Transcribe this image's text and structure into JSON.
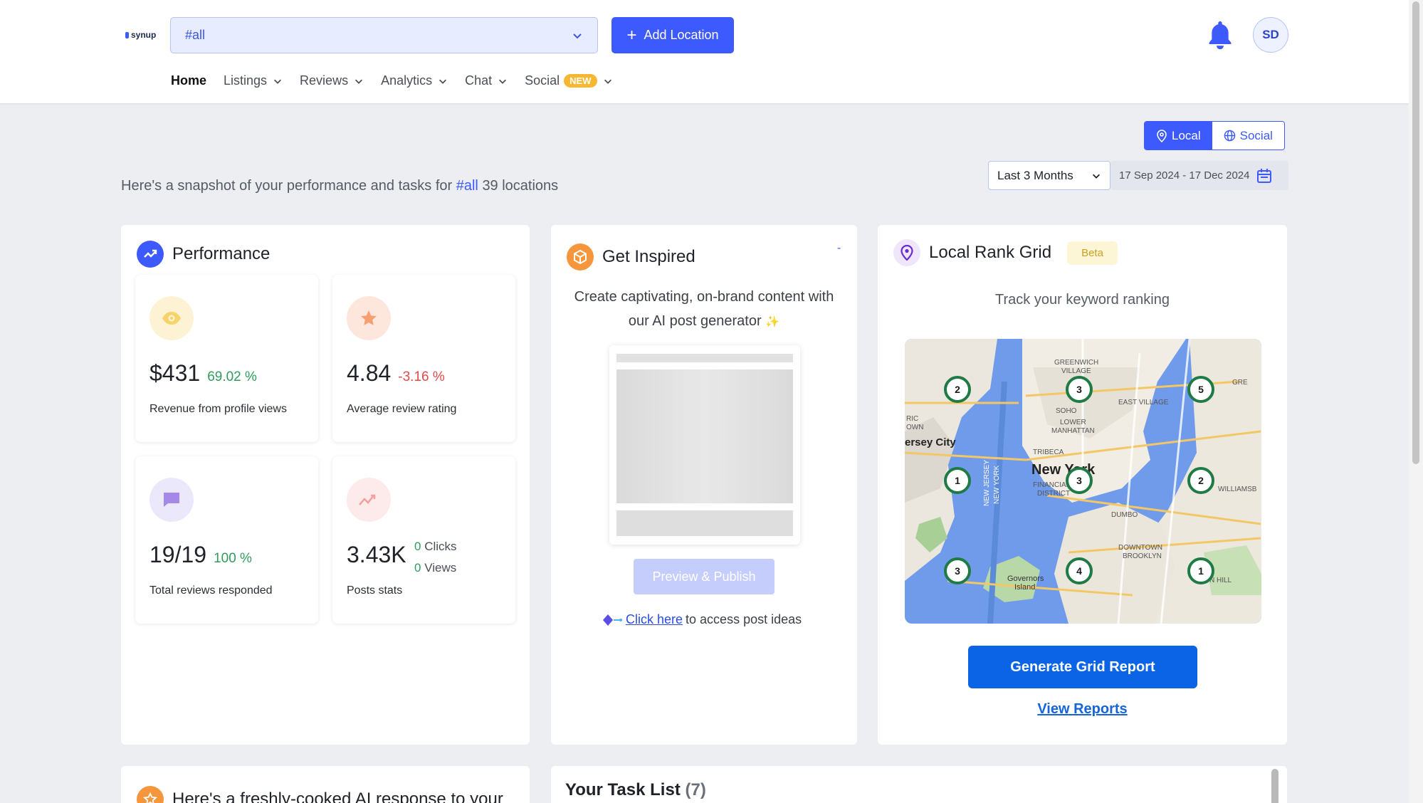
{
  "logo": {
    "text": "synup"
  },
  "location_select": {
    "value": "#all"
  },
  "add_location": {
    "label": "Add Location"
  },
  "avatar": {
    "initials": "SD"
  },
  "nav": [
    {
      "label": "Home",
      "active": true
    },
    {
      "label": "Listings"
    },
    {
      "label": "Reviews"
    },
    {
      "label": "Analytics"
    },
    {
      "label": "Chat"
    },
    {
      "label": "Social",
      "badge": "NEW"
    }
  ],
  "toggle": {
    "local": "Local",
    "social": "Social"
  },
  "date_range": {
    "selected": "Last 3 Months",
    "dates": "17 Sep 2024 - 17 Dec 2024"
  },
  "snapshot": {
    "prefix": "Here's a snapshot of your performance and tasks for",
    "tag": "#all",
    "suffix": "39 locations"
  },
  "performance": {
    "title": "Performance",
    "metrics": [
      {
        "value": "$431",
        "change": "69.02 %",
        "label": "Revenue from profile views",
        "icon": "eye-icon"
      },
      {
        "value": "4.84",
        "change": "-3.16 %",
        "label": "Average review rating",
        "icon": "star-icon"
      },
      {
        "value": "19/19",
        "change": "100 %",
        "label": "Total reviews responded",
        "icon": "chat-icon"
      },
      {
        "value": "3.43K",
        "clicks_count": "0",
        "clicks_label": "Clicks",
        "views_count": "0",
        "views_label": "Views",
        "label": "Posts stats",
        "icon": "trend-icon"
      }
    ]
  },
  "inspire": {
    "title": "Get Inspired",
    "dash": "-",
    "line1": "Create captivating, on-brand content with",
    "line2": "our AI post generator",
    "sparkle": "✨",
    "preview_label": "Preview & Publish",
    "click_here": "Click here",
    "click_suffix": " to access post ideas"
  },
  "rank_grid": {
    "title": "Local Rank Grid",
    "badge": "Beta",
    "subtitle": "Track your keyword ranking",
    "map_labels": {
      "greenwich": "GREENWICH",
      "village": "VILLAGE",
      "east_village": "EAST VILLAGE",
      "soho": "SOHO",
      "lower": "LOWER",
      "manhattan": "MANHATTAN",
      "jersey_city": "ersey City",
      "tribeca": "TRIBECA",
      "new_york": "New York",
      "financial": "FINANCIAL",
      "district": "DISTRICT",
      "dumbo": "DUMBO",
      "downtown": "DOWNTOWN",
      "brooklyn": "BROOKLYN",
      "governors": "Governors",
      "island": "Island",
      "williams": "WILLIAMSB",
      "new_jersey": "NEW JERSEY",
      "new_york_vert": "NEW YORK",
      "ric": "RIC",
      "own": "OWN",
      "gre": "GRE",
      "hill": "N HILL"
    },
    "pins": [
      "2",
      "3",
      "5",
      "1",
      "3",
      "2",
      "3",
      "4",
      "1"
    ],
    "generate_label": "Generate Grid Report",
    "view_reports": "View Reports"
  },
  "ai_response": {
    "title": "Here's a freshly-cooked AI response to your"
  },
  "task_list": {
    "title": "Your Task List",
    "count": "(7)"
  }
}
